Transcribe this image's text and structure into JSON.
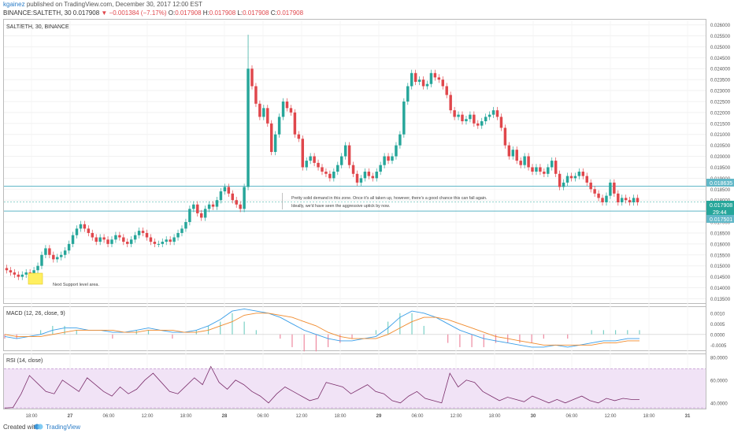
{
  "header": {
    "author": "kgainez",
    "published_text": "published on TradingView.com, December 30, 2017 12:00 EST",
    "symbol_line": "BINANCE:SALTETH, 30",
    "last_price": "0.017908",
    "change_arrow": "▼",
    "change": "−0.001384 (−7.17%)",
    "o_label": "O:",
    "o_value": "0.017908",
    "h_label": "H:",
    "h_value": "0.017908",
    "l_label": "L:",
    "l_value": "0.017908",
    "c_label": "C:",
    "c_value": "0.017908"
  },
  "footer": {
    "created_with": "Created with",
    "brand": "TradingView"
  },
  "colors": {
    "up": "#26a69a",
    "down": "#e0474c",
    "macd": "#3a9ee8",
    "signal": "#f08a2c",
    "rsi_line": "#7a2d6a",
    "rsi_band": "#f1e3f6",
    "hline": "#62b8c8",
    "note_box": "#ffef60"
  },
  "chart_data": [
    {
      "type": "candlestick",
      "title": "SALT/ETH, 30, BINANCE",
      "y_ticks": [
        "0.013500",
        "0.014000",
        "0.014500",
        "0.015000",
        "0.015500",
        "0.016000",
        "0.016500",
        "0.017000",
        "0.017500",
        "0.018000",
        "0.018500",
        "0.019000",
        "0.019500",
        "0.020000",
        "0.020500",
        "0.021000",
        "0.021500",
        "0.022000",
        "0.022500",
        "0.023000",
        "0.023500",
        "0.024000",
        "0.024500",
        "0.025000",
        "0.025500",
        "0.026000"
      ],
      "ylim": [
        0.0133,
        0.0262
      ],
      "x_ticks": [
        "18:00",
        "27",
        "06:00",
        "12:00",
        "18:00",
        "28",
        "06:00",
        "12:00",
        "18:00",
        "29",
        "06:00",
        "12:00",
        "18:00",
        "30",
        "06:00",
        "12:00",
        "18:00",
        "31"
      ],
      "price_labels": {
        "resistance": "0.018635",
        "last": "0.017908",
        "countdown": "29:44",
        "support": "0.017501"
      },
      "horizontal_levels": [
        0.018635,
        0.017501
      ],
      "annotations": [
        "Pretty solid demand in this zone. Once it's all taken up, however, there's a good chance this can fall again.",
        "Ideally, we'd have seen the aggressive uptick by now.",
        "Next Support level area."
      ],
      "close": [
        0.0148,
        0.0147,
        0.0146,
        0.0145,
        0.0146,
        0.0147,
        0.0145,
        0.0148,
        0.015,
        0.0155,
        0.0158,
        0.0155,
        0.0153,
        0.0154,
        0.0155,
        0.0157,
        0.016,
        0.0164,
        0.0167,
        0.0169,
        0.0167,
        0.0165,
        0.0163,
        0.0161,
        0.0163,
        0.0162,
        0.016,
        0.0162,
        0.0164,
        0.0163,
        0.0161,
        0.016,
        0.0162,
        0.0164,
        0.0166,
        0.0165,
        0.0163,
        0.0161,
        0.016,
        0.016,
        0.0161,
        0.0162,
        0.0161,
        0.0163,
        0.0165,
        0.0167,
        0.017,
        0.0176,
        0.0178,
        0.0174,
        0.0172,
        0.0176,
        0.0178,
        0.0177,
        0.018,
        0.0184,
        0.0186,
        0.0183,
        0.018,
        0.0178,
        0.0176,
        0.0186,
        0.024,
        0.0232,
        0.0224,
        0.0218,
        0.0222,
        0.0215,
        0.0202,
        0.021,
        0.0218,
        0.0225,
        0.0222,
        0.022,
        0.021,
        0.0208,
        0.0195,
        0.0198,
        0.02,
        0.0197,
        0.0195,
        0.0193,
        0.0192,
        0.019,
        0.0193,
        0.0196,
        0.02,
        0.0205,
        0.0196,
        0.0192,
        0.0188,
        0.019,
        0.0193,
        0.0191,
        0.019,
        0.0193,
        0.0196,
        0.02,
        0.0198,
        0.02,
        0.0205,
        0.021,
        0.0225,
        0.0232,
        0.0238,
        0.0234,
        0.0235,
        0.0232,
        0.0233,
        0.0238,
        0.0236,
        0.0235,
        0.0232,
        0.0228,
        0.0221,
        0.0218,
        0.0219,
        0.0216,
        0.0217,
        0.0219,
        0.0215,
        0.0214,
        0.0216,
        0.0218,
        0.0219,
        0.0221,
        0.0218,
        0.0213,
        0.0205,
        0.02,
        0.0203,
        0.0198,
        0.0196,
        0.02,
        0.0195,
        0.0193,
        0.0195,
        0.0193,
        0.0192,
        0.0195,
        0.0198,
        0.0192,
        0.0186,
        0.0188,
        0.0191,
        0.019,
        0.0191,
        0.0193,
        0.0191,
        0.0188,
        0.0185,
        0.0183,
        0.0181,
        0.0179,
        0.0182,
        0.0188,
        0.0183,
        0.0179,
        0.0181,
        0.018,
        0.0179,
        0.0181,
        0.0179
      ]
    },
    {
      "type": "line",
      "title": "MACD (12, 26, close, 9)",
      "y_ticks": [
        "0.0010",
        "0.0005",
        "0.0000",
        "-0.0005"
      ],
      "ylim": [
        -0.00075,
        0.00125
      ],
      "series": [
        {
          "values": [
            -0.0001,
            -0.0002,
            -0.0001,
            0.0,
            0.0002,
            0.0003,
            0.0003,
            0.0002,
            0.0002,
            0.0001,
            0.0001,
            0.0002,
            0.0003,
            0.0002,
            0.0001,
            0.0001,
            0.0002,
            0.0004,
            0.0007,
            0.0011,
            0.0012,
            0.0011,
            0.001,
            0.0008,
            0.0005,
            0.0002,
            0.0,
            -0.0002,
            -0.0003,
            -0.0003,
            -0.0002,
            -0.0001,
            0.0003,
            0.0008,
            0.0011,
            0.001,
            0.0008,
            0.0005,
            0.0002,
            0.0,
            -0.0002,
            -0.0003,
            -0.0004,
            -0.0005,
            -0.0006,
            -0.0006,
            -0.0005,
            -0.0006,
            -0.0005,
            -0.0004,
            -0.0003,
            -0.0003,
            -0.0002,
            -0.0002
          ]
        },
        {
          "values": [
            0.0,
            -0.0001,
            -0.0001,
            -0.0001,
            0.0,
            0.0001,
            0.0002,
            0.0002,
            0.0002,
            0.0002,
            0.0001,
            0.0001,
            0.0002,
            0.0002,
            0.0002,
            0.0001,
            0.0001,
            0.0002,
            0.0004,
            0.0006,
            0.0009,
            0.001,
            0.001,
            0.0009,
            0.0008,
            0.0006,
            0.0004,
            0.0001,
            -0.0001,
            -0.0002,
            -0.0002,
            -0.0002,
            0.0,
            0.0003,
            0.0006,
            0.0008,
            0.0008,
            0.0007,
            0.0005,
            0.0003,
            0.0001,
            -0.0001,
            -0.0002,
            -0.0003,
            -0.0004,
            -0.0005,
            -0.0005,
            -0.0005,
            -0.0005,
            -0.0005,
            -0.0004,
            -0.0004,
            -0.0003,
            -0.0003
          ]
        }
      ]
    },
    {
      "type": "line",
      "title": "RSI (14, close)",
      "y_ticks": [
        "80.0000",
        "60.0000",
        "40.0000"
      ],
      "ylim": [
        35,
        82
      ],
      "bands": [
        70,
        30
      ],
      "series": [
        {
          "values": [
            30,
            36,
            48,
            64,
            57,
            50,
            48,
            60,
            55,
            50,
            62,
            56,
            50,
            46,
            54,
            48,
            52,
            60,
            66,
            58,
            50,
            48,
            55,
            62,
            56,
            72,
            58,
            52,
            60,
            56,
            50,
            46,
            40,
            48,
            54,
            50,
            46,
            42,
            44,
            58,
            56,
            54,
            48,
            52,
            56,
            50,
            48,
            42,
            40,
            46,
            50,
            44,
            42,
            40,
            66,
            54,
            60,
            58,
            50,
            46,
            42,
            45,
            43,
            41,
            46,
            43,
            40,
            43,
            40,
            43,
            46,
            42,
            40,
            44,
            42,
            44,
            43,
            43
          ]
        }
      ]
    }
  ]
}
